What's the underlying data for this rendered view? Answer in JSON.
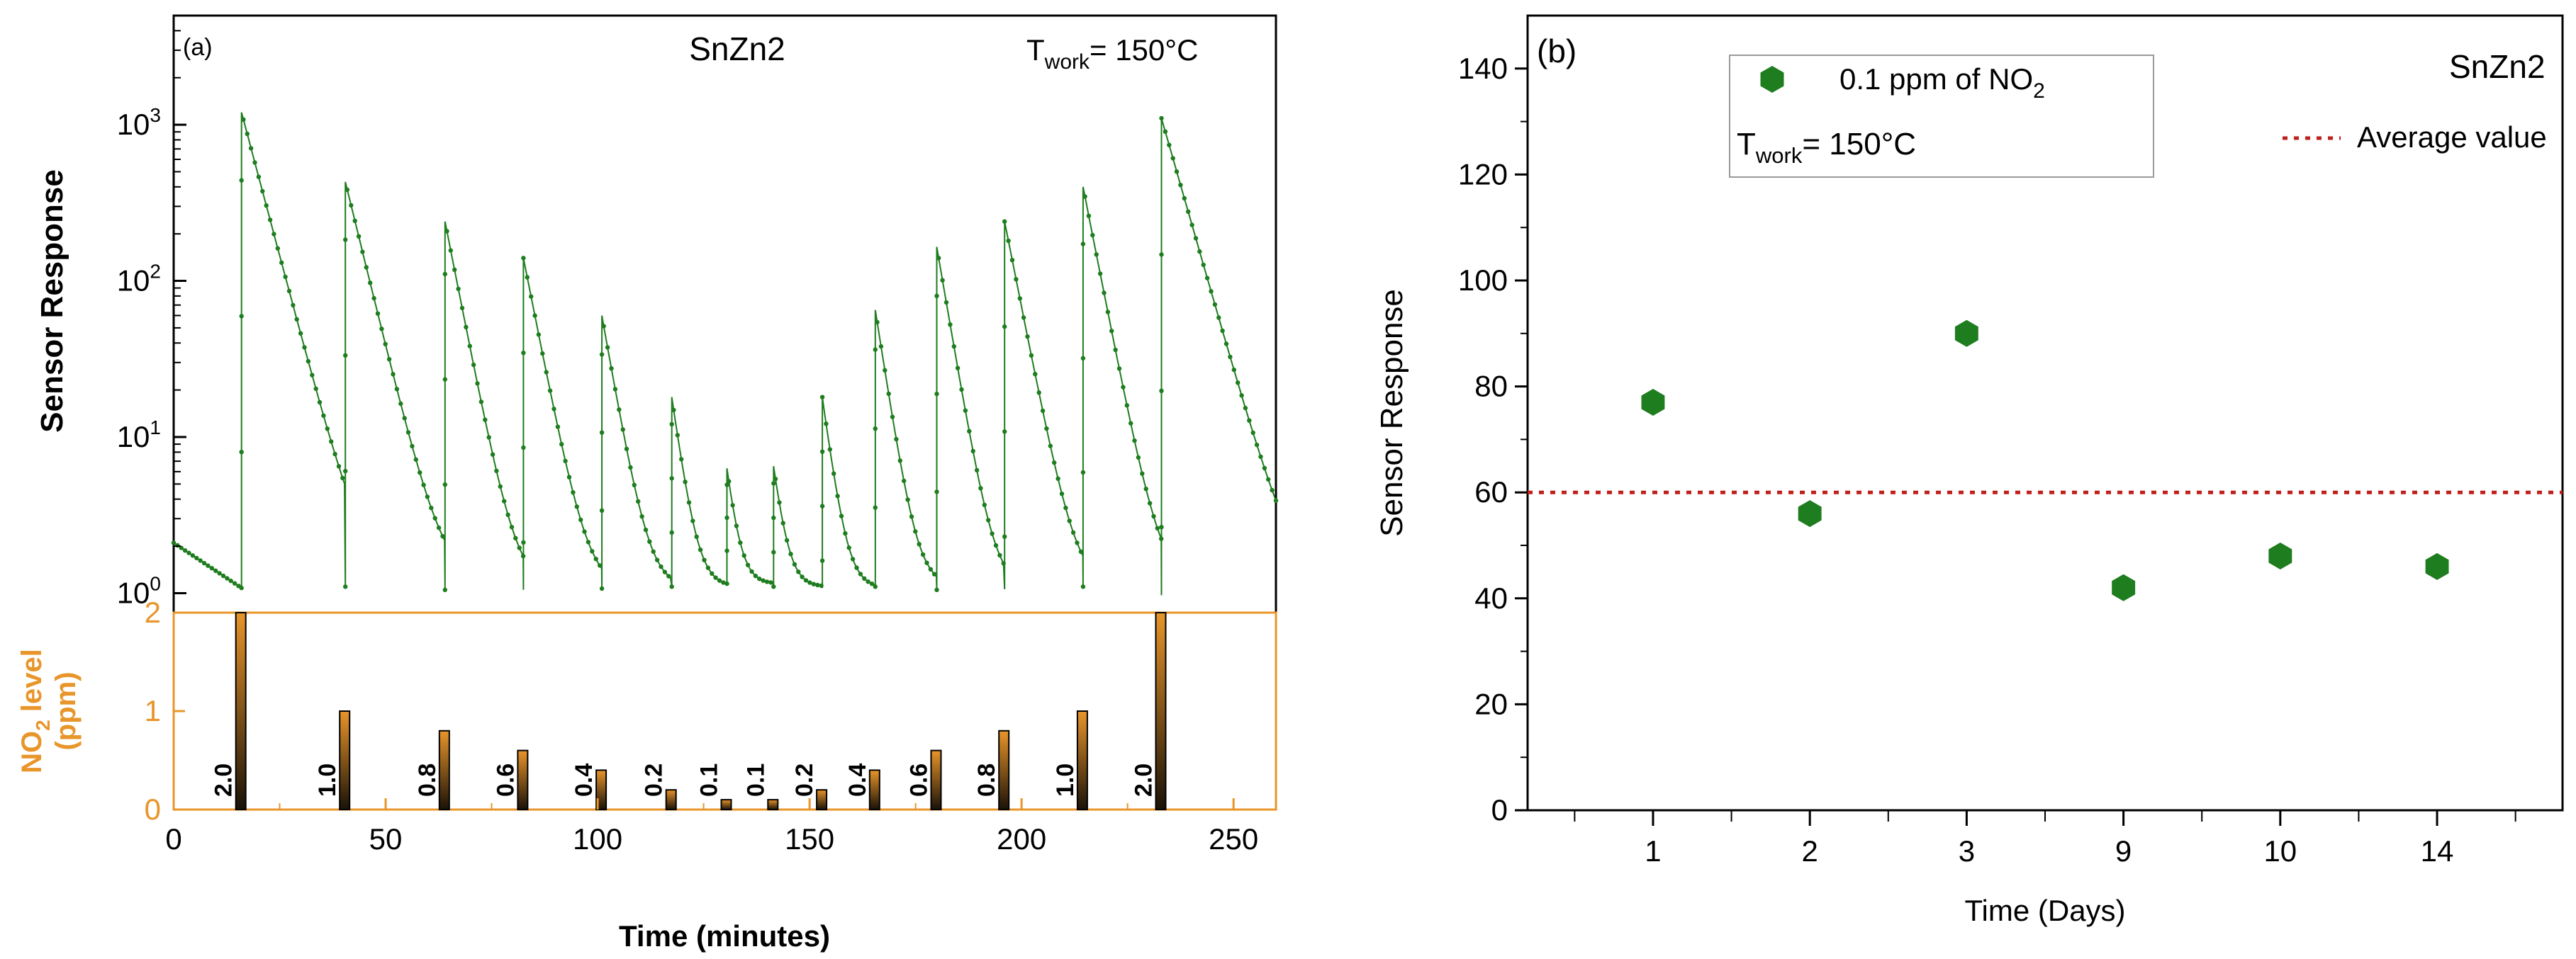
{
  "chart_data": [
    {
      "type": "line",
      "panel": "(a)",
      "title": "SnZn2",
      "condition": {
        "prefix": "T",
        "subscript": "work",
        "value": "= 150",
        "unit": "°C"
      },
      "ylabel": "Sensor Response",
      "yscale": "log",
      "ylim": [
        0.75,
        5000
      ],
      "y_ticks": [
        {
          "base": "10",
          "exp": "0",
          "value": 1
        },
        {
          "base": "10",
          "exp": "1",
          "value": 10
        },
        {
          "base": "10",
          "exp": "2",
          "value": 100
        },
        {
          "base": "10",
          "exp": "3",
          "value": 1000
        }
      ],
      "xlim": [
        0,
        260
      ],
      "series_color": "#1e7d1e",
      "baseline_start": 2.1,
      "baseline_end": 1.0,
      "pulses": [
        {
          "time": 16,
          "peak": 1200,
          "base": 1.08,
          "dur": 25
        },
        {
          "time": 40.5,
          "peak": 430,
          "base": 1.1,
          "dur": 23
        },
        {
          "time": 64,
          "peak": 240,
          "base": 1.05,
          "dur": 18.5
        },
        {
          "time": 82.5,
          "peak": 140,
          "base": 1.05,
          "dur": 18.5
        },
        {
          "time": 101,
          "peak": 60,
          "base": 1.07,
          "dur": 16.5
        },
        {
          "time": 117.5,
          "peak": 18,
          "base": 1.1,
          "dur": 13
        },
        {
          "time": 130.5,
          "peak": 6.3,
          "base": 1.15,
          "dur": 11
        },
        {
          "time": 141.5,
          "peak": 6.5,
          "base": 1.1,
          "dur": 11.5
        },
        {
          "time": 153,
          "peak": 18,
          "base": 1.08,
          "dur": 12.5
        },
        {
          "time": 165.5,
          "peak": 65,
          "base": 1.1,
          "dur": 14.5
        },
        {
          "time": 180,
          "peak": 165,
          "base": 1.05,
          "dur": 16
        },
        {
          "time": 196,
          "peak": 240,
          "base": 1.06,
          "dur": 18.5
        },
        {
          "time": 214.5,
          "peak": 400,
          "base": 1.1,
          "dur": 18.5
        },
        {
          "time": 233,
          "peak": 1100,
          "base": 0.97,
          "dur": 27
        }
      ]
    },
    {
      "type": "bar",
      "panel": "(a) lower",
      "ylabel_main": "NO",
      "ylabel_sub": "2",
      "ylabel_tail": " level",
      "ylabel_unit": "(ppm)",
      "xlabel": "Time (minutes)",
      "xlim": [
        0,
        260
      ],
      "ylim": [
        0,
        2
      ],
      "y_ticks": [
        "0",
        "1",
        "2"
      ],
      "x_ticks": [
        "0",
        "50",
        "100",
        "150",
        "200",
        "250"
      ],
      "bar_color": "#e8952a",
      "bars": [
        {
          "time": 16,
          "value": 2.0,
          "label": "2.0"
        },
        {
          "time": 40.5,
          "value": 1.0,
          "label": "1.0"
        },
        {
          "time": 64,
          "value": 0.8,
          "label": "0.8"
        },
        {
          "time": 82.5,
          "value": 0.6,
          "label": "0.6"
        },
        {
          "time": 101,
          "value": 0.4,
          "label": "0.4"
        },
        {
          "time": 117.5,
          "value": 0.2,
          "label": "0.2"
        },
        {
          "time": 130.5,
          "value": 0.1,
          "label": "0.1"
        },
        {
          "time": 141.5,
          "value": 0.1,
          "label": "0.1"
        },
        {
          "time": 153,
          "value": 0.2,
          "label": "0.2"
        },
        {
          "time": 165.5,
          "value": 0.4,
          "label": "0.4"
        },
        {
          "time": 180,
          "value": 0.6,
          "label": "0.6"
        },
        {
          "time": 196,
          "value": 0.8,
          "label": "0.8"
        },
        {
          "time": 214.5,
          "value": 1.0,
          "label": "1.0"
        },
        {
          "time": 233,
          "value": 2.0,
          "label": "2.0"
        }
      ]
    },
    {
      "type": "scatter",
      "panel": "(b)",
      "title": "SnZn2",
      "xlabel": "Time (Days)",
      "ylabel": "Sensor Response",
      "ylim": [
        0,
        150
      ],
      "y_ticks": [
        "0",
        "20",
        "40",
        "60",
        "80",
        "100",
        "120",
        "140"
      ],
      "categories": [
        "1",
        "2",
        "3",
        "9",
        "10",
        "14"
      ],
      "values": [
        77,
        56,
        90,
        42,
        48,
        46
      ],
      "average": 60,
      "marker_color": "#1e7d1e",
      "average_color": "#c0201b",
      "legend": {
        "series_main": "0.1 ppm of NO",
        "series_sub": "2",
        "condition": {
          "prefix": "T",
          "subscript": "work",
          "value": "= 150",
          "unit": "°C"
        },
        "average_label": "Average value"
      }
    }
  ]
}
